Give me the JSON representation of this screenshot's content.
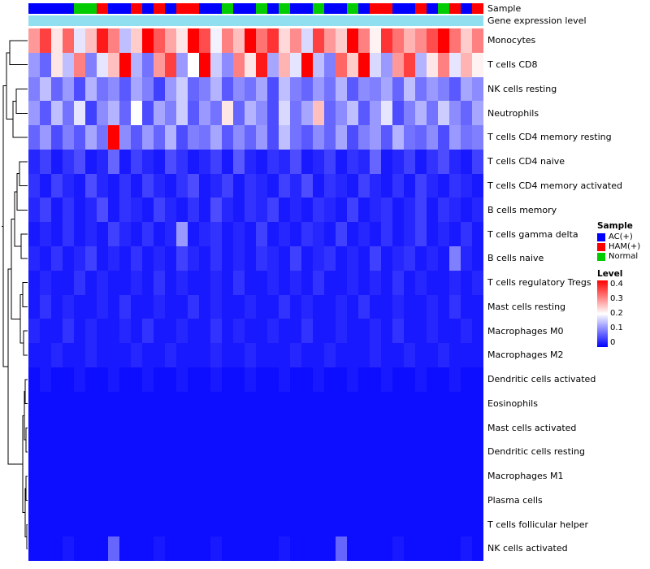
{
  "annotations": {
    "sample_label": "Sample",
    "expression_label": "Gene expression level",
    "expression_bar_color": "#8FDFF0",
    "sample_colors": {
      "AC(+)": "#0000FF",
      "HAM(+)": "#FF0000",
      "Normal": "#00CC00"
    },
    "sample_sequence": [
      "AC(+)",
      "AC(+)",
      "AC(+)",
      "AC(+)",
      "Normal",
      "Normal",
      "HAM(+)",
      "AC(+)",
      "AC(+)",
      "HAM(+)",
      "AC(+)",
      "HAM(+)",
      "AC(+)",
      "HAM(+)",
      "HAM(+)",
      "AC(+)",
      "AC(+)",
      "Normal",
      "AC(+)",
      "AC(+)",
      "Normal",
      "AC(+)",
      "Normal",
      "AC(+)",
      "AC(+)",
      "Normal",
      "AC(+)",
      "AC(+)",
      "Normal",
      "AC(+)",
      "HAM(+)",
      "HAM(+)",
      "AC(+)",
      "AC(+)",
      "HAM(+)",
      "AC(+)",
      "Normal",
      "HAM(+)",
      "AC(+)",
      "HAM(+)"
    ]
  },
  "legend": {
    "sample_title": "Sample",
    "sample_entries": [
      {
        "label": "AC(+)",
        "color": "#0000FF"
      },
      {
        "label": "HAM(+)",
        "color": "#FF0000"
      },
      {
        "label": "Normal",
        "color": "#00CC00"
      }
    ],
    "level_title": "Level",
    "level_ticks": [
      "0.4",
      "0.3",
      "0.2",
      "0.1",
      "0"
    ],
    "level_gradient": [
      "#FF0000",
      "#FFFFFF",
      "#0000FF"
    ]
  },
  "chart_data": {
    "type": "heatmap",
    "title": "",
    "rows": [
      "Monocytes",
      "T cells CD8",
      "NK cells resting",
      "Neutrophils",
      "T cells CD4 memory resting",
      "T cells CD4 naive",
      "T cells CD4 memory activated",
      "B cells memory",
      "T cells gamma delta",
      "B cells naive",
      "T cells regulatory Tregs",
      "Mast cells resting",
      "Macrophages M0",
      "Macrophages M2",
      "Dendritic cells activated",
      "Eosinophils",
      "Mast cells activated",
      "Dendritic cells resting",
      "Macrophages M1",
      "Plasma cells",
      "T cells follicular helper",
      "NK cells activated"
    ],
    "columns": 40,
    "value_range": [
      0,
      0.4
    ],
    "colormap": {
      "low": "#0000FF",
      "mid": "#FFFFFF",
      "high": "#FF0000",
      "midpoint": 0.2
    },
    "row_dendrogram": true,
    "values": [
      [
        0.28,
        0.35,
        0.22,
        0.32,
        0.18,
        0.25,
        0.38,
        0.3,
        0.15,
        0.24,
        0.4,
        0.33,
        0.27,
        0.22,
        0.4,
        0.34,
        0.19,
        0.3,
        0.25,
        0.4,
        0.31,
        0.36,
        0.23,
        0.29,
        0.17,
        0.35,
        0.28,
        0.24,
        0.4,
        0.3,
        0.21,
        0.36,
        0.31,
        0.26,
        0.29,
        0.34,
        0.4,
        0.31,
        0.24,
        0.3
      ],
      [
        0.12,
        0.08,
        0.22,
        0.15,
        0.3,
        0.1,
        0.18,
        0.25,
        0.4,
        0.14,
        0.09,
        0.28,
        0.35,
        0.12,
        0.2,
        0.4,
        0.16,
        0.11,
        0.3,
        0.22,
        0.38,
        0.13,
        0.26,
        0.18,
        0.4,
        0.15,
        0.1,
        0.32,
        0.24,
        0.4,
        0.17,
        0.12,
        0.28,
        0.35,
        0.14,
        0.22,
        0.3,
        0.18,
        0.26,
        0.21
      ],
      [
        0.1,
        0.15,
        0.08,
        0.12,
        0.06,
        0.14,
        0.09,
        0.11,
        0.07,
        0.13,
        0.1,
        0.05,
        0.12,
        0.16,
        0.08,
        0.1,
        0.14,
        0.07,
        0.11,
        0.09,
        0.13,
        0.06,
        0.15,
        0.1,
        0.08,
        0.12,
        0.09,
        0.14,
        0.07,
        0.11,
        0.1,
        0.13,
        0.08,
        0.15,
        0.09,
        0.12,
        0.1,
        0.07,
        0.13,
        0.11
      ],
      [
        0.12,
        0.07,
        0.15,
        0.09,
        0.18,
        0.05,
        0.11,
        0.14,
        0.08,
        0.2,
        0.06,
        0.13,
        0.1,
        0.16,
        0.07,
        0.12,
        0.09,
        0.22,
        0.08,
        0.14,
        0.11,
        0.06,
        0.17,
        0.09,
        0.13,
        0.25,
        0.08,
        0.11,
        0.15,
        0.07,
        0.12,
        0.18,
        0.06,
        0.1,
        0.14,
        0.09,
        0.16,
        0.11,
        0.08,
        0.13
      ],
      [
        0.08,
        0.12,
        0.06,
        0.1,
        0.07,
        0.13,
        0.09,
        0.4,
        0.11,
        0.07,
        0.12,
        0.08,
        0.14,
        0.06,
        0.1,
        0.09,
        0.13,
        0.07,
        0.11,
        0.08,
        0.12,
        0.06,
        0.15,
        0.09,
        0.07,
        0.11,
        0.08,
        0.13,
        0.06,
        0.1,
        0.12,
        0.07,
        0.14,
        0.09,
        0.08,
        0.11,
        0.06,
        0.12,
        0.09,
        0.1
      ],
      [
        0.03,
        0.05,
        0.02,
        0.04,
        0.06,
        0.02,
        0.03,
        0.08,
        0.02,
        0.05,
        0.03,
        0.02,
        0.06,
        0.04,
        0.02,
        0.03,
        0.05,
        0.02,
        0.07,
        0.03,
        0.02,
        0.04,
        0.03,
        0.06,
        0.02,
        0.03,
        0.05,
        0.02,
        0.04,
        0.03,
        0.08,
        0.02,
        0.03,
        0.05,
        0.02,
        0.04,
        0.06,
        0.03,
        0.02,
        0.05
      ],
      [
        0.04,
        0.02,
        0.05,
        0.03,
        0.02,
        0.06,
        0.03,
        0.02,
        0.04,
        0.02,
        0.05,
        0.03,
        0.02,
        0.04,
        0.06,
        0.02,
        0.03,
        0.05,
        0.02,
        0.04,
        0.03,
        0.02,
        0.05,
        0.03,
        0.06,
        0.02,
        0.04,
        0.03,
        0.02,
        0.05,
        0.03,
        0.02,
        0.04,
        0.02,
        0.05,
        0.03,
        0.02,
        0.04,
        0.03,
        0.02
      ],
      [
        0.03,
        0.05,
        0.02,
        0.04,
        0.02,
        0.03,
        0.06,
        0.02,
        0.04,
        0.03,
        0.02,
        0.05,
        0.03,
        0.02,
        0.04,
        0.02,
        0.06,
        0.03,
        0.02,
        0.04,
        0.03,
        0.05,
        0.02,
        0.03,
        0.02,
        0.04,
        0.03,
        0.02,
        0.05,
        0.02,
        0.03,
        0.04,
        0.02,
        0.03,
        0.05,
        0.02,
        0.04,
        0.03,
        0.02,
        0.03
      ],
      [
        0.02,
        0.03,
        0.02,
        0.04,
        0.02,
        0.03,
        0.02,
        0.05,
        0.03,
        0.02,
        0.04,
        0.02,
        0.03,
        0.12,
        0.02,
        0.03,
        0.04,
        0.02,
        0.03,
        0.02,
        0.05,
        0.02,
        0.03,
        0.02,
        0.04,
        0.03,
        0.02,
        0.05,
        0.02,
        0.03,
        0.02,
        0.04,
        0.02,
        0.03,
        0.05,
        0.02,
        0.03,
        0.02,
        0.04,
        0.02
      ],
      [
        0.03,
        0.02,
        0.04,
        0.02,
        0.03,
        0.05,
        0.02,
        0.03,
        0.02,
        0.04,
        0.02,
        0.03,
        0.02,
        0.05,
        0.03,
        0.02,
        0.04,
        0.02,
        0.03,
        0.02,
        0.04,
        0.03,
        0.02,
        0.05,
        0.02,
        0.03,
        0.04,
        0.02,
        0.03,
        0.02,
        0.05,
        0.02,
        0.03,
        0.04,
        0.02,
        0.03,
        0.02,
        0.1,
        0.03,
        0.02
      ],
      [
        0.02,
        0.03,
        0.02,
        0.02,
        0.04,
        0.02,
        0.03,
        0.02,
        0.02,
        0.03,
        0.02,
        0.04,
        0.02,
        0.03,
        0.02,
        0.02,
        0.03,
        0.02,
        0.04,
        0.02,
        0.02,
        0.03,
        0.02,
        0.03,
        0.02,
        0.04,
        0.02,
        0.02,
        0.03,
        0.02,
        0.03,
        0.02,
        0.04,
        0.02,
        0.03,
        0.02,
        0.02,
        0.03,
        0.02,
        0.03
      ],
      [
        0.02,
        0.04,
        0.02,
        0.03,
        0.02,
        0.02,
        0.03,
        0.02,
        0.04,
        0.02,
        0.02,
        0.03,
        0.02,
        0.02,
        0.04,
        0.02,
        0.03,
        0.02,
        0.02,
        0.03,
        0.02,
        0.02,
        0.04,
        0.02,
        0.03,
        0.02,
        0.02,
        0.03,
        0.02,
        0.04,
        0.02,
        0.02,
        0.03,
        0.02,
        0.02,
        0.03,
        0.02,
        0.04,
        0.02,
        0.02
      ],
      [
        0.03,
        0.02,
        0.02,
        0.04,
        0.02,
        0.03,
        0.02,
        0.02,
        0.03,
        0.02,
        0.04,
        0.02,
        0.02,
        0.03,
        0.02,
        0.02,
        0.04,
        0.02,
        0.03,
        0.02,
        0.02,
        0.03,
        0.02,
        0.02,
        0.04,
        0.02,
        0.02,
        0.03,
        0.02,
        0.02,
        0.03,
        0.02,
        0.04,
        0.02,
        0.02,
        0.03,
        0.02,
        0.02,
        0.03,
        0.02
      ],
      [
        0.02,
        0.02,
        0.03,
        0.02,
        0.02,
        0.03,
        0.02,
        0.02,
        0.02,
        0.03,
        0.02,
        0.02,
        0.03,
        0.02,
        0.02,
        0.02,
        0.03,
        0.02,
        0.02,
        0.03,
        0.02,
        0.02,
        0.02,
        0.03,
        0.02,
        0.02,
        0.03,
        0.02,
        0.02,
        0.02,
        0.03,
        0.02,
        0.02,
        0.03,
        0.02,
        0.02,
        0.03,
        0.02,
        0.02,
        0.02
      ],
      [
        0.01,
        0.02,
        0.01,
        0.01,
        0.02,
        0.01,
        0.01,
        0.02,
        0.01,
        0.01,
        0.02,
        0.01,
        0.01,
        0.02,
        0.01,
        0.01,
        0.02,
        0.01,
        0.01,
        0.02,
        0.01,
        0.01,
        0.02,
        0.01,
        0.01,
        0.02,
        0.01,
        0.01,
        0.02,
        0.01,
        0.01,
        0.02,
        0.01,
        0.01,
        0.02,
        0.01,
        0.01,
        0.02,
        0.01,
        0.01
      ],
      [
        0.01,
        0.01,
        0.01,
        0.01,
        0.01,
        0.01,
        0.01,
        0.01,
        0.01,
        0.01,
        0.01,
        0.01,
        0.01,
        0.01,
        0.01,
        0.01,
        0.01,
        0.01,
        0.01,
        0.01,
        0.01,
        0.01,
        0.01,
        0.01,
        0.01,
        0.01,
        0.01,
        0.01,
        0.01,
        0.01,
        0.01,
        0.01,
        0.01,
        0.01,
        0.01,
        0.01,
        0.01,
        0.01,
        0.01,
        0.01
      ],
      [
        0.01,
        0.01,
        0.01,
        0.01,
        0.01,
        0.01,
        0.01,
        0.01,
        0.01,
        0.01,
        0.01,
        0.01,
        0.01,
        0.01,
        0.01,
        0.01,
        0.01,
        0.01,
        0.01,
        0.01,
        0.01,
        0.01,
        0.01,
        0.01,
        0.01,
        0.01,
        0.01,
        0.01,
        0.01,
        0.01,
        0.01,
        0.01,
        0.01,
        0.01,
        0.01,
        0.01,
        0.01,
        0.01,
        0.01,
        0.01
      ],
      [
        0.01,
        0.01,
        0.01,
        0.01,
        0.01,
        0.01,
        0.01,
        0.01,
        0.01,
        0.01,
        0.01,
        0.01,
        0.01,
        0.01,
        0.01,
        0.01,
        0.01,
        0.01,
        0.01,
        0.01,
        0.01,
        0.01,
        0.01,
        0.01,
        0.01,
        0.01,
        0.01,
        0.01,
        0.01,
        0.01,
        0.01,
        0.01,
        0.01,
        0.01,
        0.01,
        0.01,
        0.01,
        0.01,
        0.01,
        0.01
      ],
      [
        0.01,
        0.01,
        0.01,
        0.01,
        0.01,
        0.01,
        0.01,
        0.01,
        0.01,
        0.01,
        0.01,
        0.01,
        0.01,
        0.01,
        0.01,
        0.01,
        0.01,
        0.01,
        0.01,
        0.01,
        0.01,
        0.01,
        0.01,
        0.01,
        0.01,
        0.01,
        0.01,
        0.01,
        0.01,
        0.01,
        0.01,
        0.01,
        0.01,
        0.01,
        0.01,
        0.01,
        0.01,
        0.01,
        0.01,
        0.01
      ],
      [
        0.01,
        0.01,
        0.01,
        0.01,
        0.01,
        0.01,
        0.01,
        0.01,
        0.01,
        0.01,
        0.01,
        0.01,
        0.01,
        0.01,
        0.01,
        0.01,
        0.01,
        0.01,
        0.01,
        0.01,
        0.01,
        0.01,
        0.01,
        0.01,
        0.01,
        0.01,
        0.01,
        0.01,
        0.01,
        0.01,
        0.01,
        0.01,
        0.01,
        0.01,
        0.01,
        0.01,
        0.01,
        0.01,
        0.01,
        0.01
      ],
      [
        0.01,
        0.01,
        0.01,
        0.01,
        0.01,
        0.01,
        0.01,
        0.01,
        0.01,
        0.01,
        0.01,
        0.01,
        0.01,
        0.01,
        0.01,
        0.01,
        0.01,
        0.01,
        0.01,
        0.01,
        0.01,
        0.01,
        0.01,
        0.01,
        0.01,
        0.01,
        0.01,
        0.01,
        0.01,
        0.01,
        0.01,
        0.01,
        0.01,
        0.01,
        0.01,
        0.01,
        0.01,
        0.01,
        0.01,
        0.01
      ],
      [
        0.01,
        0.01,
        0.01,
        0.02,
        0.01,
        0.01,
        0.01,
        0.08,
        0.01,
        0.01,
        0.01,
        0.02,
        0.01,
        0.01,
        0.01,
        0.01,
        0.02,
        0.01,
        0.01,
        0.01,
        0.01,
        0.01,
        0.02,
        0.01,
        0.01,
        0.01,
        0.01,
        0.08,
        0.01,
        0.01,
        0.01,
        0.01,
        0.02,
        0.01,
        0.01,
        0.01,
        0.01,
        0.01,
        0.02,
        0.01
      ]
    ]
  }
}
